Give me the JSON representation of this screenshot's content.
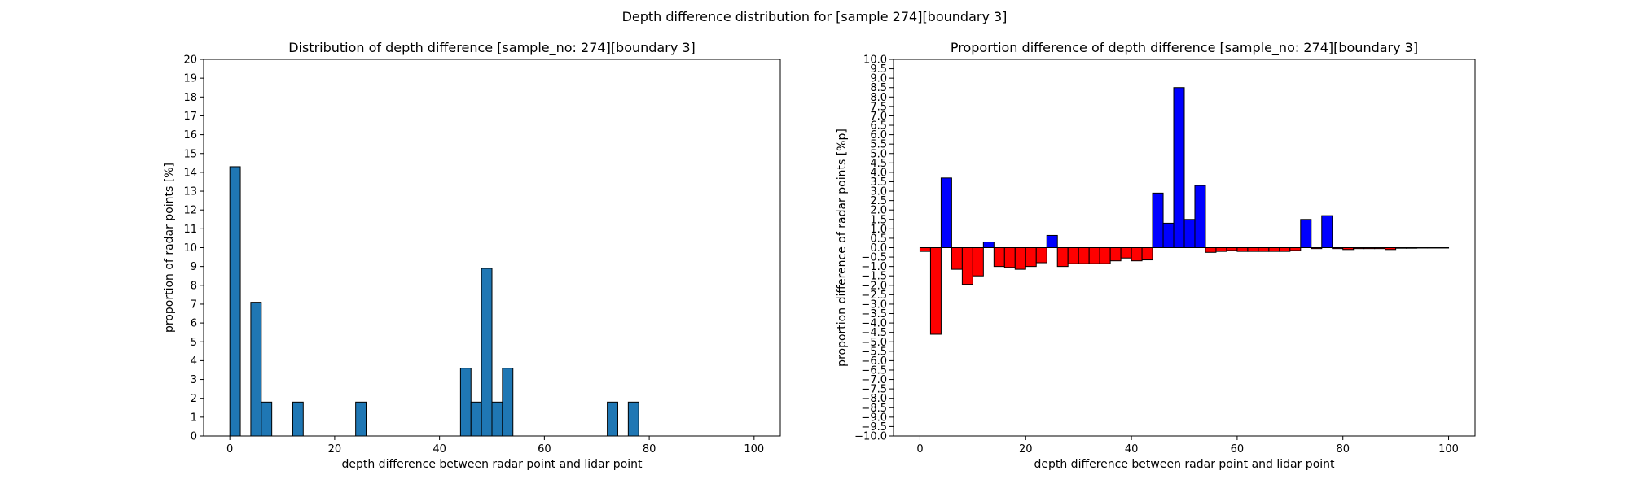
{
  "suptitle": "Depth difference distribution for [sample 274][boundary 3]",
  "chart_data": [
    {
      "type": "bar",
      "title": "Distribution of depth difference [sample_no: 274][boundary 3]",
      "xlabel": "depth difference between radar point and lidar point",
      "ylabel": "proportion of radar points [%]",
      "xlim": [
        -5,
        105
      ],
      "ylim": [
        0,
        20
      ],
      "x_ticks": [
        0,
        20,
        40,
        60,
        80,
        100
      ],
      "y_ticks": [
        0,
        1,
        2,
        3,
        4,
        5,
        6,
        7,
        8,
        9,
        10,
        11,
        12,
        13,
        14,
        15,
        16,
        17,
        18,
        19,
        20
      ],
      "bar_width": 2,
      "bar_color": "#1f77b4",
      "x": [
        1,
        5,
        7,
        13,
        25,
        45,
        47,
        49,
        51,
        53,
        73,
        77
      ],
      "values": [
        14.3,
        7.1,
        1.8,
        1.8,
        1.8,
        3.6,
        1.8,
        8.9,
        1.8,
        3.6,
        1.8,
        1.8
      ],
      "grid": false
    },
    {
      "type": "bar",
      "title": "Proportion difference of depth difference [sample_no: 274][boundary 3]",
      "xlabel": "depth difference between radar point and lidar point",
      "ylabel": "proportion difference of radar points [%p]",
      "xlim": [
        -5,
        105
      ],
      "ylim": [
        -10,
        10
      ],
      "x_ticks": [
        0,
        20,
        40,
        60,
        80,
        100
      ],
      "y_ticks": [
        -10.0,
        -9.5,
        -9.0,
        -8.5,
        -8.0,
        -7.5,
        -7.0,
        -6.5,
        -6.0,
        -5.5,
        -5.0,
        -4.5,
        -4.0,
        -3.5,
        -3.0,
        -2.5,
        -2.0,
        -1.5,
        -1.0,
        -0.5,
        0.0,
        0.5,
        1.0,
        1.5,
        2.0,
        2.5,
        3.0,
        3.5,
        4.0,
        4.5,
        5.0,
        5.5,
        6.0,
        6.5,
        7.0,
        7.5,
        8.0,
        8.5,
        9.0,
        9.5,
        10.0
      ],
      "bar_width": 2,
      "positive_color": "#0000ff",
      "negative_color": "#ff0000",
      "x": [
        1,
        3,
        5,
        7,
        9,
        11,
        13,
        15,
        17,
        19,
        21,
        23,
        25,
        27,
        29,
        31,
        33,
        35,
        37,
        39,
        41,
        43,
        45,
        47,
        49,
        51,
        53,
        55,
        57,
        59,
        61,
        63,
        65,
        67,
        69,
        71,
        73,
        75,
        77,
        79,
        81,
        83,
        85,
        87,
        89,
        91,
        93,
        95,
        97,
        99
      ],
      "values": [
        -0.2,
        -4.6,
        3.7,
        -1.15,
        -1.95,
        -1.5,
        0.3,
        -1.0,
        -1.05,
        -1.15,
        -1.0,
        -0.8,
        0.65,
        -1.0,
        -0.85,
        -0.85,
        -0.85,
        -0.85,
        -0.7,
        -0.55,
        -0.7,
        -0.65,
        2.9,
        1.3,
        8.5,
        1.5,
        3.3,
        -0.25,
        -0.2,
        -0.15,
        -0.2,
        -0.2,
        -0.2,
        -0.2,
        -0.2,
        -0.15,
        1.5,
        -0.05,
        1.7,
        -0.05,
        -0.1,
        -0.05,
        -0.05,
        -0.05,
        -0.1,
        -0.03,
        -0.03,
        -0.02,
        -0.02,
        -0.02
      ],
      "grid": false
    }
  ]
}
